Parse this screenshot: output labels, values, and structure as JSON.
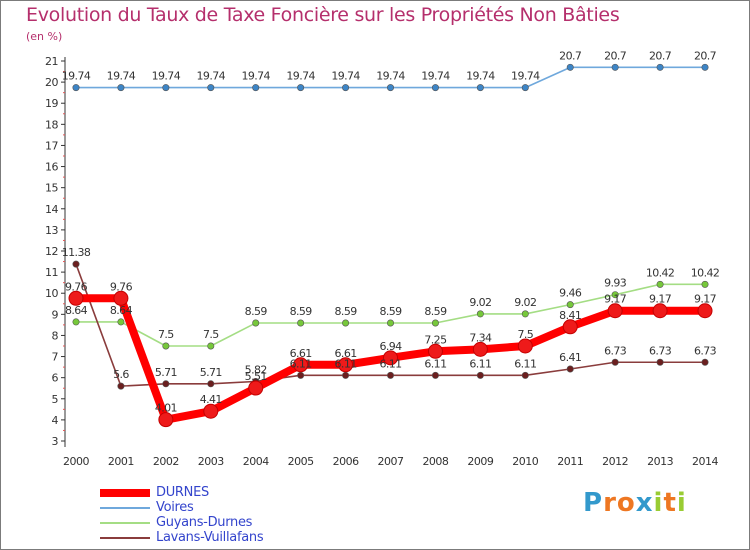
{
  "chart_data": {
    "type": "line",
    "title": "Evolution du Taux de Taxe Foncière sur les Propriétés Non Bâties",
    "ylabel": "(en %)",
    "xlabel": "",
    "ylim": [
      3,
      21
    ],
    "yticks": [
      "3",
      "4",
      "5",
      "6",
      "7",
      "8",
      "9",
      "10",
      "11",
      "12",
      "13",
      "14",
      "15",
      "16",
      "17",
      "18",
      "19",
      "20",
      "21"
    ],
    "categories": [
      "2000",
      "2001",
      "2002",
      "2003",
      "2004",
      "2005",
      "2006",
      "2007",
      "2008",
      "2009",
      "2010",
      "2011",
      "2012",
      "2013",
      "2014"
    ],
    "series": [
      {
        "name": "DURNES",
        "color": "#ff0000",
        "marker_color": "#ee1a1a",
        "values": [
          9.76,
          9.76,
          4.01,
          4.41,
          5.51,
          6.61,
          6.61,
          6.94,
          7.25,
          7.34,
          7.5,
          8.41,
          9.17,
          9.17,
          9.17
        ],
        "labels": [
          "9.76",
          "9.76",
          "4.01",
          "4.41",
          "5.51",
          "6.61",
          "6.61",
          "6.94",
          "7.25",
          "7.34",
          "7.5",
          "8.41",
          "9.17",
          "9.17",
          "9.17"
        ]
      },
      {
        "name": "Voires",
        "color": "#6fa8dc",
        "marker_color": "#3d85c6",
        "values": [
          19.74,
          19.74,
          19.74,
          19.74,
          19.74,
          19.74,
          19.74,
          19.74,
          19.74,
          19.74,
          19.74,
          20.7,
          20.7,
          20.7,
          20.7
        ],
        "labels": [
          "19.74",
          "19.74",
          "19.74",
          "19.74",
          "19.74",
          "19.74",
          "19.74",
          "19.74",
          "19.74",
          "19.74",
          "19.74",
          "20.7",
          "20.7",
          "20.7",
          "20.7"
        ]
      },
      {
        "name": "Guyans-Durnes",
        "color": "#a4dd84",
        "marker_color": "#76c83a",
        "values": [
          8.64,
          8.64,
          7.5,
          7.5,
          8.59,
          8.59,
          8.59,
          8.59,
          8.59,
          9.02,
          9.02,
          9.46,
          9.93,
          10.42,
          10.42
        ],
        "labels": [
          "8.64",
          "8.64",
          "7.5",
          "7.5",
          "8.59",
          "8.59",
          "8.59",
          "8.59",
          "8.59",
          "9.02",
          "9.02",
          "9.46",
          "9.93",
          "10.42",
          "10.42"
        ]
      },
      {
        "name": "Lavans-Vuillafans",
        "color": "#8a3c3c",
        "marker_color": "#6b1f1f",
        "values": [
          11.38,
          5.6,
          5.71,
          5.71,
          5.82,
          6.11,
          6.11,
          6.11,
          6.11,
          6.11,
          6.11,
          6.41,
          6.73,
          6.73,
          6.73
        ],
        "labels": [
          "11.38",
          "5.6",
          "5.71",
          "5.71",
          "5.82",
          "6.11",
          "6.11",
          "6.11",
          "6.11",
          "6.11",
          "6.11",
          "6.41",
          "6.73",
          "6.73",
          "6.73"
        ]
      }
    ]
  },
  "logo": {
    "letters": [
      "P",
      "r",
      "o",
      "x",
      "i",
      "t",
      "i"
    ],
    "colors": [
      "#3399cc",
      "#ee7722",
      "#ee7722",
      "#3399cc",
      "#99cc33",
      "#ee7722",
      "#99cc33"
    ]
  }
}
